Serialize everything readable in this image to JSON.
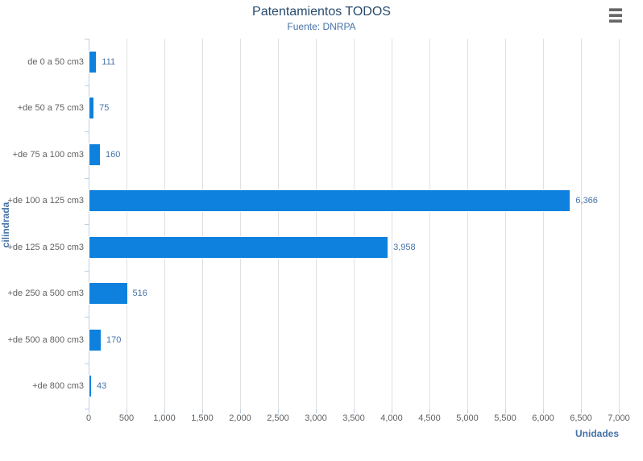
{
  "header": {
    "title": "Patentamientos TODOS",
    "subtitle": "Fuente: DNRPA"
  },
  "export_menu": {
    "icon": "hamburger-icon",
    "color": "#666666"
  },
  "chart_data": {
    "type": "bar",
    "orientation": "horizontal",
    "title": "Patentamientos TODOS",
    "subtitle": "Fuente: DNRPA",
    "xlabel": "Unidades",
    "ylabel": "cilindrada",
    "categories": [
      "de 0 a 50 cm3",
      "+de 50 a 75 cm3",
      "+de 75 a 100 cm3",
      "+de 100 a 125 cm3",
      "+de 125 a 250 cm3",
      "+de 250 a 500 cm3",
      "+de 500 a 800 cm3",
      "+de 800 cm3"
    ],
    "values": [
      111,
      75,
      160,
      6366,
      3958,
      516,
      170,
      43
    ],
    "value_labels": [
      "111",
      "75",
      "160",
      "6,366",
      "3,958",
      "516",
      "170",
      "43"
    ],
    "xlim": [
      0,
      7000
    ],
    "x_tick_step": 500,
    "x_tick_labels": [
      "0",
      "500",
      "1,000",
      "1,500",
      "2,000",
      "2,500",
      "3,000",
      "3,500",
      "4,000",
      "4,500",
      "5,000",
      "5,500",
      "6,000",
      "6,500",
      "7,000"
    ],
    "grid": true,
    "legend": "none",
    "colors": {
      "bar": "#0d81dd",
      "title": "#274b6d",
      "subtitle": "#4572a7",
      "axis_title": "#4572a7",
      "data_label": "#4572a7",
      "tick_label": "#606060",
      "gridline": "#e0e0e0",
      "axis_line": "#c0d0e0",
      "background": "#ffffff"
    }
  }
}
